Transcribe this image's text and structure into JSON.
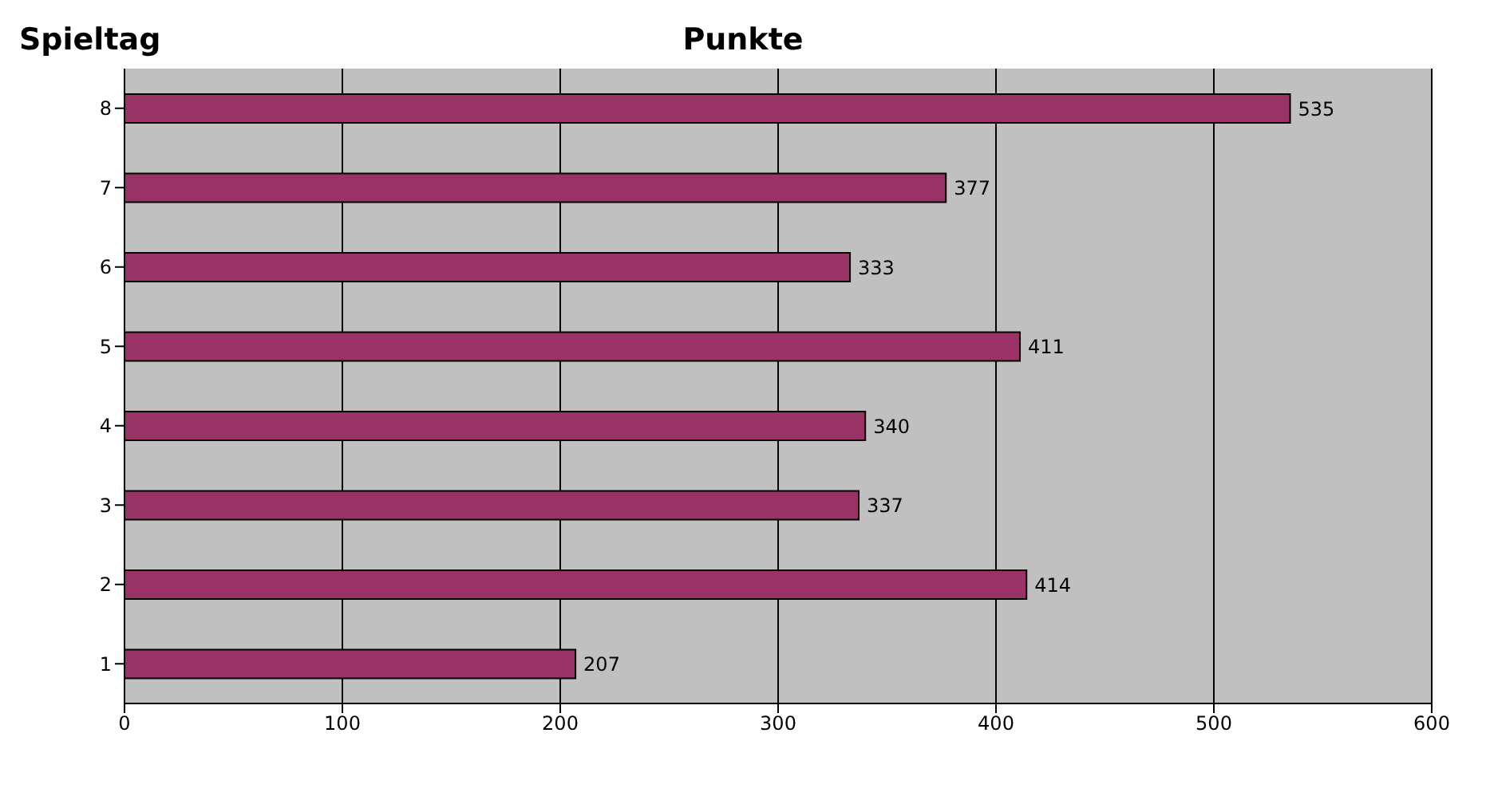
{
  "chart_data": {
    "type": "bar",
    "orientation": "horizontal",
    "title": "Punkte",
    "ylabel": "Spieltag",
    "categories": [
      "8",
      "7",
      "6",
      "5",
      "4",
      "3",
      "2",
      "1"
    ],
    "values": [
      535,
      377,
      333,
      411,
      340,
      337,
      414,
      207
    ],
    "color": "#993366",
    "xlim": [
      0,
      600
    ],
    "xticks": [
      0,
      100,
      200,
      300,
      400,
      500,
      600
    ],
    "grid": "x",
    "data_labels": true
  }
}
